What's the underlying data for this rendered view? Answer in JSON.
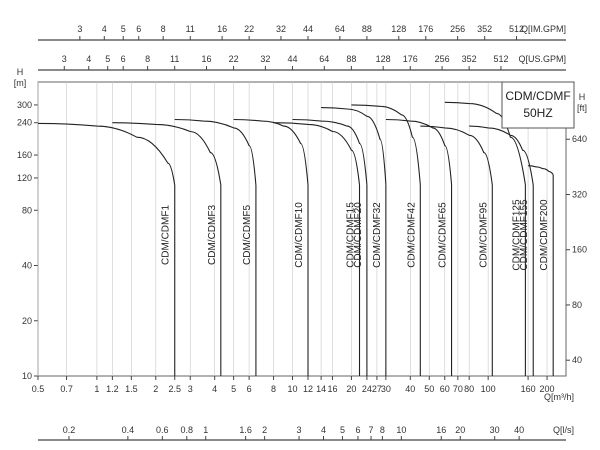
{
  "chart_data": {
    "type": "line",
    "legend": {
      "title": "CDM/CDMF",
      "subtitle": "50HZ",
      "placement": "top-right"
    },
    "axes": {
      "flow_m3h": {
        "label": "Q[m³/h]",
        "scale": "log",
        "range": [
          0.5,
          250
        ],
        "ticks": [
          0.5,
          0.7,
          1,
          1.2,
          1.5,
          2,
          2.5,
          3,
          4,
          5,
          6,
          8,
          10,
          12,
          14,
          16,
          20,
          24,
          27,
          30,
          40,
          50,
          60,
          70,
          80,
          100,
          160,
          200
        ]
      },
      "flow_ls": {
        "label": "Q[l/s]",
        "scale": "log",
        "ticks": [
          0.2,
          0.4,
          0.6,
          0.8,
          1,
          1.6,
          2,
          3,
          4,
          5,
          6,
          7,
          8,
          10,
          16,
          20,
          30,
          40
        ]
      },
      "flow_usgpm": {
        "label": "Q[US.GPM]",
        "scale": "log",
        "ticks": [
          3,
          4,
          5,
          6,
          8,
          11,
          16,
          22,
          32,
          44,
          64,
          88,
          128,
          176,
          256,
          352,
          512
        ]
      },
      "flow_imgpm": {
        "label": "Q[IM.GPM]",
        "scale": "log",
        "ticks": [
          3,
          4,
          5,
          6,
          8,
          11,
          16,
          22,
          32,
          44,
          64,
          88,
          128,
          176,
          256,
          352,
          512
        ]
      },
      "head_m": {
        "label": "H",
        "unit": "[m]",
        "scale": "log",
        "range": [
          10,
          400
        ],
        "ticks": [
          10,
          20,
          40,
          80,
          120,
          160,
          240,
          300
        ]
      },
      "head_ft": {
        "label": "H",
        "unit": "[ft]",
        "scale": "log",
        "ticks": [
          40,
          80,
          160,
          320,
          640
        ]
      }
    },
    "grid": {
      "vertical": true,
      "horizontal": false
    },
    "series": [
      {
        "name": "CDM/CDMF1",
        "x": [
          0.5,
          1.0,
          1.6,
          2.3,
          2.5
        ],
        "y": [
          238,
          230,
          200,
          145,
          110
        ]
      },
      {
        "name": "CDM/CDMF3",
        "x": [
          1.2,
          2.0,
          3.0,
          3.8,
          4.3
        ],
        "y": [
          240,
          235,
          215,
          165,
          110
        ]
      },
      {
        "name": "CDM/CDMF5",
        "x": [
          2.5,
          3.5,
          5.0,
          6.0,
          6.5
        ],
        "y": [
          250,
          245,
          225,
          180,
          110
        ]
      },
      {
        "name": "CDM/CDMF10",
        "x": [
          5.0,
          7.0,
          9.0,
          11.0,
          12.0
        ],
        "y": [
          250,
          245,
          230,
          185,
          110
        ]
      },
      {
        "name": "CDM/CDMF15",
        "x": [
          8.0,
          12.0,
          16.0,
          20.0,
          22.0
        ],
        "y": [
          240,
          235,
          215,
          170,
          110
        ]
      },
      {
        "name": "CDM/CDMF20",
        "x": [
          10.0,
          14.0,
          19.0,
          22.0,
          24.0
        ],
        "y": [
          250,
          245,
          230,
          185,
          110
        ]
      },
      {
        "name": "CDM/CDMF32",
        "x": [
          14.0,
          19.0,
          24.0,
          28.0,
          30.0
        ],
        "y": [
          290,
          285,
          260,
          195,
          110
        ]
      },
      {
        "name": "CDM/CDMF42",
        "x": [
          20.0,
          28.0,
          36.0,
          41.0,
          45.0
        ],
        "y": [
          300,
          295,
          265,
          200,
          110
        ]
      },
      {
        "name": "CDM/CDMF65",
        "x": [
          30.0,
          40.0,
          52.0,
          60.0,
          65.0
        ],
        "y": [
          250,
          245,
          225,
          180,
          110
        ]
      },
      {
        "name": "CDM/CDMF95",
        "x": [
          45.0,
          60.0,
          80.0,
          95.0,
          105.0
        ],
        "y": [
          230,
          225,
          205,
          165,
          110
        ]
      },
      {
        "name": "CDM/CDMF125",
        "x": [
          60.0,
          80.0,
          110.0,
          130.0,
          155.0
        ],
        "y": [
          310,
          305,
          270,
          200,
          110
        ]
      },
      {
        "name": "CDM/CDMF155",
        "x": [
          80.0,
          100.0,
          130.0,
          150.0,
          170.0
        ],
        "y": [
          230,
          225,
          205,
          170,
          110
        ]
      },
      {
        "name": "CDM/CDMF200",
        "x": [
          160.0,
          175.0,
          190.0,
          205.0,
          215.0
        ],
        "y": [
          140,
          138,
          135,
          130,
          125
        ]
      }
    ]
  }
}
